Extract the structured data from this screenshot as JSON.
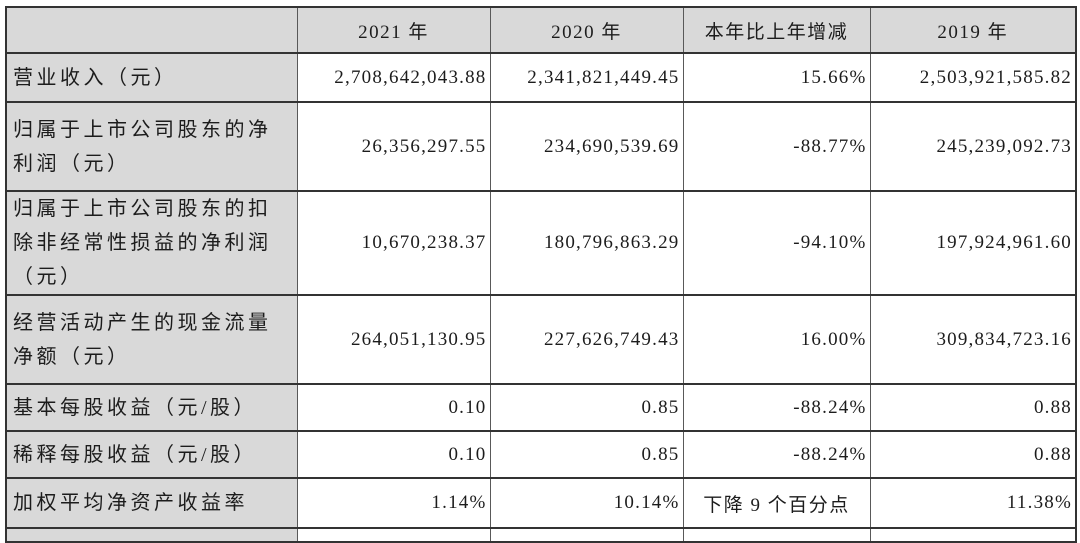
{
  "colors": {
    "cell_gray": "#d9d9d9",
    "cell_white": "#ffffff",
    "border_thin": "#595959",
    "border_thick": "#333333",
    "text": "#1c1c1c"
  },
  "table": {
    "header": {
      "metric": "",
      "y2021": "2021 年",
      "y2020": "2020 年",
      "change": "本年比上年增减",
      "y2019": "2019 年"
    },
    "rows": [
      {
        "label": "营业收入（元）",
        "y2021": "2,708,642,043.88",
        "y2020": "2,341,821,449.45",
        "change": "15.66%",
        "y2019": "2,503,921,585.82"
      },
      {
        "label": "归属于上市公司股东的净利润（元）",
        "y2021": "26,356,297.55",
        "y2020": "234,690,539.69",
        "change": "-88.77%",
        "y2019": "245,239,092.73"
      },
      {
        "label": "归属于上市公司股东的扣除非经常性损益的净利润（元）",
        "y2021": "10,670,238.37",
        "y2020": "180,796,863.29",
        "change": "-94.10%",
        "y2019": "197,924,961.60"
      },
      {
        "label": "经营活动产生的现金流量净额（元）",
        "y2021": "264,051,130.95",
        "y2020": "227,626,749.43",
        "change": "16.00%",
        "y2019": "309,834,723.16"
      },
      {
        "label": "基本每股收益（元/股）",
        "y2021": "0.10",
        "y2020": "0.85",
        "change": "-88.24%",
        "y2019": "0.88"
      },
      {
        "label": "稀释每股收益（元/股）",
        "y2021": "0.10",
        "y2020": "0.85",
        "change": "-88.24%",
        "y2019": "0.88"
      },
      {
        "label": "加权平均净资产收益率",
        "y2021": "1.14%",
        "y2020": "10.14%",
        "change": "下降 9 个百分点",
        "y2019": "11.38%"
      }
    ]
  }
}
